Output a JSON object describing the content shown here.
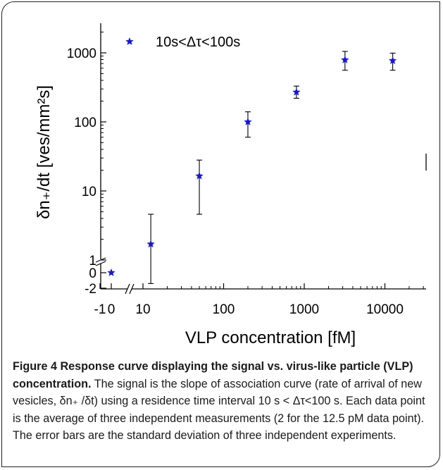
{
  "chart_data": {
    "type": "scatter",
    "xlabel": "VLP concentration [fM]",
    "ylabel": "δn₊/dt [ves/mm²s]",
    "x_scale": "log (broken axis: -1, 0 | 10 … 10000)",
    "y_scale": "log (broken axis: -2, 0 | 1 … 1000)",
    "x_tick_labels": [
      "-1",
      "0",
      "10",
      "100",
      "1000",
      "10000"
    ],
    "y_tick_labels": [
      "-2",
      "0",
      "1",
      "10",
      "100",
      "1000"
    ],
    "legend": {
      "label": "10s<Δτ<100s",
      "marker": "star",
      "placement": "top-left"
    },
    "marker_color": "#1515e0",
    "grid": false,
    "points": [
      {
        "x": 0,
        "y": 0,
        "err_lo": null,
        "err_hi": null
      },
      {
        "x": 12.5,
        "y": 1.7,
        "err_lo": -1.4,
        "err_hi": 4.6
      },
      {
        "x": 50,
        "y": 16.5,
        "err_lo": 4.6,
        "err_hi": 28
      },
      {
        "x": 200,
        "y": 100,
        "err_lo": 60,
        "err_hi": 140
      },
      {
        "x": 800,
        "y": 270,
        "err_lo": 220,
        "err_hi": 330
      },
      {
        "x": 3200,
        "y": 790,
        "err_lo": 560,
        "err_hi": 1050
      },
      {
        "x": 12500,
        "y": 770,
        "err_lo": 560,
        "err_hi": 990
      }
    ]
  },
  "caption": {
    "label": "Figure 4 Response curve displaying the signal vs. virus-like particle (VLP) concentration.",
    "text": " The signal is the slope of association curve (rate of arrival of new vesicles, δn₊ /δt) using a residence time interval 10 s < Δτ<100 s. Each data point is the average of three independent measurements (2 for the 12.5 pM data point). The error bars are the standard deviation of three independent experiments."
  }
}
